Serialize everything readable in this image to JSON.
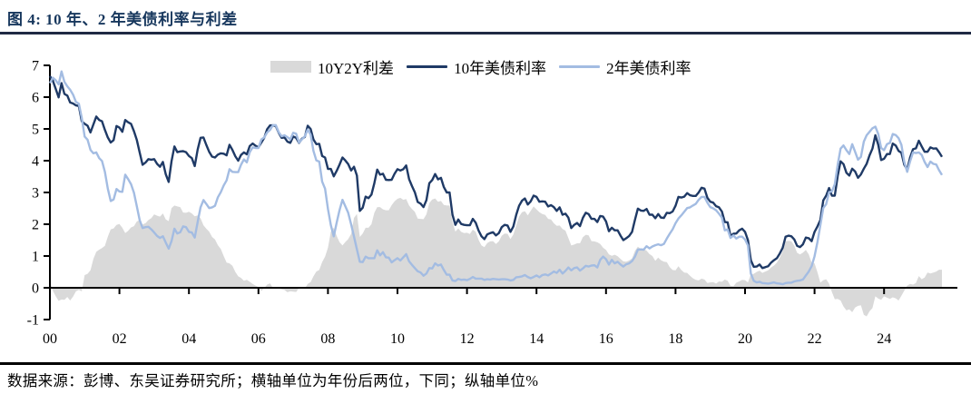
{
  "header": {
    "title": "图 4:  10 年、2 年美债利率与利差"
  },
  "footer": {
    "source": "数据来源：彭博、东吴证券研究所；横轴单位为年份后两位，下同；纵轴单位%"
  },
  "colors": {
    "navy_line": "#1F3A66",
    "light_blue_line": "#A3BCE2",
    "gray_fill": "#D9D9D9",
    "title_navy": "#17375D",
    "axis_black": "#000000"
  },
  "chart_data": {
    "type": "line",
    "title": "10 年、2 年美债利率与利差",
    "xlabel": "",
    "ylabel": "",
    "ylim": [
      -1,
      7
    ],
    "y_ticks": [
      -1,
      0,
      1,
      2,
      3,
      4,
      5,
      6,
      7
    ],
    "x_ticks": [
      "00",
      "02",
      "04",
      "06",
      "08",
      "10",
      "12",
      "14",
      "16",
      "18",
      "20",
      "22",
      "24"
    ],
    "x_tick_years": [
      2000,
      2002,
      2004,
      2006,
      2008,
      2010,
      2012,
      2014,
      2016,
      2018,
      2020,
      2022,
      2024
    ],
    "x_start_year": 2000,
    "x_step_months": 1,
    "x_end": "2025-09",
    "grid": false,
    "legend_position": "top-center",
    "legend": [
      {
        "label": "10Y2Y利差",
        "swatch": "area",
        "color": "#D9D9D9"
      },
      {
        "label": "10年美债利率",
        "swatch": "line",
        "color": "#1F3A66"
      },
      {
        "label": "2年美债利率",
        "swatch": "line",
        "color": "#A3BCE2"
      }
    ],
    "series": [
      {
        "name": "10年美债利率",
        "unit": "%",
        "values": [
          6.66,
          6.52,
          6.26,
          5.99,
          6.44,
          6.1,
          6.05,
          5.83,
          5.8,
          5.74,
          5.72,
          5.24,
          5.16,
          5.1,
          4.89,
          5.14,
          5.39,
          5.28,
          5.24,
          4.97,
          4.73,
          4.57,
          4.65,
          5.09,
          5.04,
          4.91,
          5.28,
          5.21,
          5.16,
          4.93,
          4.65,
          4.26,
          3.87,
          3.94,
          4.05,
          4.03,
          4.05,
          3.9,
          3.81,
          3.96,
          3.57,
          3.33,
          3.98,
          4.45,
          4.27,
          4.29,
          4.3,
          4.27,
          4.15,
          4.08,
          3.83,
          4.35,
          4.72,
          4.73,
          4.5,
          4.28,
          4.13,
          4.1,
          4.19,
          4.23,
          4.22,
          4.17,
          4.5,
          4.34,
          4.14,
          4.0,
          4.18,
          4.26,
          4.2,
          4.46,
          4.54,
          4.47,
          4.42,
          4.57,
          4.72,
          4.99,
          5.11,
          5.11,
          5.09,
          4.88,
          4.72,
          4.73,
          4.6,
          4.56,
          4.76,
          4.72,
          4.56,
          4.69,
          4.75,
          5.1,
          5.0,
          4.67,
          4.52,
          4.53,
          4.15,
          4.1,
          3.74,
          3.74,
          3.51,
          3.68,
          3.88,
          4.1,
          4.01,
          3.89,
          3.69,
          3.81,
          3.53,
          2.42,
          2.52,
          2.87,
          2.82,
          2.93,
          3.29,
          3.72,
          3.56,
          3.59,
          3.4,
          3.39,
          3.4,
          3.59,
          3.73,
          3.69,
          3.73,
          3.85,
          3.42,
          3.2,
          3.01,
          2.7,
          2.65,
          2.54,
          2.76,
          3.29,
          3.39,
          3.58,
          3.41,
          3.46,
          3.17,
          3.0,
          3.0,
          2.3,
          1.98,
          2.15,
          2.01,
          1.98,
          1.97,
          1.97,
          2.17,
          2.05,
          1.8,
          1.62,
          1.53,
          1.68,
          1.72,
          1.75,
          1.65,
          1.72,
          1.91,
          1.98,
          1.96,
          1.76,
          1.93,
          2.3,
          2.58,
          2.74,
          2.81,
          2.62,
          2.72,
          2.9,
          2.86,
          2.71,
          2.72,
          2.71,
          2.56,
          2.6,
          2.54,
          2.42,
          2.53,
          2.3,
          2.33,
          2.21,
          1.88,
          1.98,
          2.04,
          1.94,
          2.2,
          2.36,
          2.32,
          2.17,
          2.17,
          2.07,
          2.26,
          2.24,
          2.09,
          1.78,
          1.89,
          1.81,
          1.81,
          1.64,
          1.5,
          1.56,
          1.63,
          1.76,
          2.14,
          2.49,
          2.43,
          2.42,
          2.48,
          2.3,
          2.3,
          2.19,
          2.32,
          2.21,
          2.2,
          2.36,
          2.35,
          2.4,
          2.58,
          2.86,
          2.84,
          2.87,
          2.98,
          2.91,
          2.89,
          2.89,
          3.0,
          3.15,
          3.12,
          2.83,
          2.71,
          2.68,
          2.57,
          2.53,
          2.4,
          2.07,
          2.06,
          1.63,
          1.7,
          1.71,
          1.81,
          1.86,
          1.76,
          1.5,
          0.87,
          0.66,
          0.67,
          0.73,
          0.62,
          0.65,
          0.68,
          0.79,
          0.87,
          0.93,
          1.08,
          1.26,
          1.61,
          1.64,
          1.62,
          1.52,
          1.32,
          1.28,
          1.37,
          1.58,
          1.56,
          1.47,
          1.76,
          1.93,
          2.13,
          2.75,
          2.9,
          3.14,
          2.9,
          2.9,
          3.52,
          3.98,
          3.89,
          3.62,
          3.53,
          3.75,
          3.66,
          3.46,
          3.57,
          3.75,
          3.9,
          4.17,
          4.38,
          4.8,
          4.5,
          4.02,
          4.06,
          4.21,
          4.21,
          4.54,
          4.48,
          4.31,
          4.25,
          3.87,
          3.72,
          4.1,
          4.36,
          4.39,
          4.63,
          4.45,
          4.28,
          4.28,
          4.42,
          4.38,
          4.39,
          4.27,
          4.12
        ]
      },
      {
        "name": "2年美债利率",
        "unit": "%",
        "values": [
          6.44,
          6.61,
          6.53,
          6.4,
          6.81,
          6.48,
          6.34,
          6.23,
          6.08,
          5.85,
          5.79,
          5.35,
          4.76,
          4.66,
          4.34,
          4.23,
          4.26,
          4.08,
          3.99,
          3.65,
          3.12,
          2.73,
          2.78,
          3.11,
          3.03,
          3.02,
          3.56,
          3.42,
          3.26,
          2.99,
          2.56,
          2.13,
          1.88,
          1.91,
          1.92,
          1.84,
          1.74,
          1.63,
          1.57,
          1.62,
          1.42,
          1.23,
          1.47,
          1.86,
          1.71,
          1.75,
          1.93,
          1.91,
          1.76,
          1.74,
          1.58,
          2.07,
          2.53,
          2.76,
          2.64,
          2.51,
          2.53,
          2.58,
          2.85,
          3.01,
          3.22,
          3.38,
          3.73,
          3.65,
          3.64,
          3.64,
          3.87,
          4.04,
          3.95,
          4.27,
          4.42,
          4.4,
          4.4,
          4.67,
          4.73,
          4.89,
          4.97,
          5.12,
          5.12,
          4.9,
          4.77,
          4.8,
          4.74,
          4.67,
          4.88,
          4.85,
          4.57,
          4.67,
          4.77,
          4.98,
          4.82,
          4.31,
          4.01,
          3.97,
          3.34,
          3.12,
          2.48,
          1.97,
          1.62,
          2.05,
          2.45,
          2.77,
          2.57,
          2.36,
          2.0,
          1.61,
          1.21,
          0.82,
          0.81,
          0.98,
          0.93,
          0.93,
          0.93,
          1.18,
          1.02,
          1.12,
          0.96,
          0.95,
          0.8,
          0.87,
          0.93,
          0.86,
          0.96,
          1.06,
          0.83,
          0.72,
          0.62,
          0.52,
          0.48,
          0.38,
          0.45,
          0.62,
          0.61,
          0.77,
          0.7,
          0.73,
          0.56,
          0.41,
          0.41,
          0.23,
          0.21,
          0.28,
          0.25,
          0.26,
          0.24,
          0.28,
          0.34,
          0.29,
          0.29,
          0.29,
          0.25,
          0.27,
          0.26,
          0.28,
          0.27,
          0.26,
          0.27,
          0.27,
          0.26,
          0.23,
          0.25,
          0.33,
          0.34,
          0.36,
          0.4,
          0.34,
          0.3,
          0.34,
          0.39,
          0.33,
          0.4,
          0.42,
          0.39,
          0.45,
          0.51,
          0.47,
          0.57,
          0.45,
          0.53,
          0.64,
          0.55,
          0.62,
          0.64,
          0.54,
          0.61,
          0.69,
          0.67,
          0.7,
          0.71,
          0.64,
          0.88,
          0.98,
          0.9,
          0.73,
          0.88,
          0.77,
          0.82,
          0.73,
          0.67,
          0.74,
          0.77,
          0.84,
          0.98,
          1.2,
          1.21,
          1.2,
          1.31,
          1.24,
          1.3,
          1.34,
          1.37,
          1.34,
          1.38,
          1.55,
          1.7,
          1.84,
          2.03,
          2.18,
          2.28,
          2.39,
          2.51,
          2.53,
          2.59,
          2.64,
          2.77,
          2.86,
          2.86,
          2.68,
          2.54,
          2.5,
          2.44,
          2.33,
          2.21,
          1.81,
          1.84,
          1.57,
          1.65,
          1.55,
          1.61,
          1.61,
          1.52,
          1.33,
          0.45,
          0.22,
          0.17,
          0.19,
          0.15,
          0.14,
          0.13,
          0.15,
          0.17,
          0.14,
          0.13,
          0.11,
          0.15,
          0.16,
          0.16,
          0.2,
          0.22,
          0.23,
          0.26,
          0.39,
          0.51,
          0.68,
          0.99,
          1.44,
          1.97,
          2.51,
          2.63,
          3.01,
          3.03,
          3.26,
          3.87,
          4.38,
          4.48,
          4.33,
          4.21,
          4.52,
          4.28,
          4.03,
          4.12,
          4.6,
          4.8,
          4.91,
          5.02,
          5.07,
          4.84,
          4.4,
          4.33,
          4.52,
          4.56,
          4.84,
          4.81,
          4.71,
          4.5,
          3.96,
          3.65,
          3.98,
          4.26,
          4.24,
          4.26,
          4.18,
          3.96,
          3.8,
          3.97,
          3.9,
          3.88,
          3.7,
          3.55
        ]
      },
      {
        "name": "10Y2Y利差",
        "unit": "%",
        "derived": "10年美债利率 − 2年美债利率"
      }
    ]
  }
}
